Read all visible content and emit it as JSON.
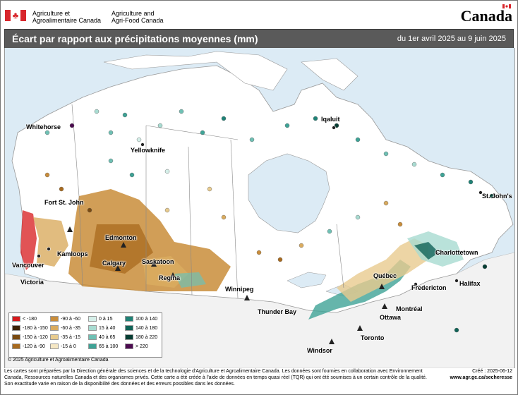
{
  "header": {
    "org_fr_line1": "Agriculture et",
    "org_fr_line2": "Agroalimentaire Canada",
    "org_en_line1": "Agriculture and",
    "org_en_line2": "Agri-Food Canada",
    "wordmark": "Canada",
    "flag_icon": "canada-flag-icon"
  },
  "title": {
    "main": "Écart par rapport aux précipitations moyennes (mm)",
    "date_range": "du 1er avril 2025 au 9 juin 2025"
  },
  "cities": [
    {
      "id": "whitehorse",
      "name": "Whitehorse"
    },
    {
      "id": "yellowknife",
      "name": "Yellowknife"
    },
    {
      "id": "iqaluit",
      "name": "Iqaluit"
    },
    {
      "id": "fort-st-john",
      "name": "Fort St. John"
    },
    {
      "id": "edmonton",
      "name": "Edmonton"
    },
    {
      "id": "kamloops",
      "name": "Kamloops"
    },
    {
      "id": "calgary",
      "name": "Calgary"
    },
    {
      "id": "saskatoon",
      "name": "Saskatoon"
    },
    {
      "id": "vancouver",
      "name": "Vancouver"
    },
    {
      "id": "regina",
      "name": "Regina"
    },
    {
      "id": "victoria",
      "name": "Victoria"
    },
    {
      "id": "winnipeg",
      "name": "Winnipeg"
    },
    {
      "id": "thunder-bay",
      "name": "Thunder Bay"
    },
    {
      "id": "st-johns",
      "name": "St. John's"
    },
    {
      "id": "charlottetown",
      "name": "Charlottetown"
    },
    {
      "id": "quebec",
      "name": "Québec"
    },
    {
      "id": "fredericton",
      "name": "Fredericton"
    },
    {
      "id": "halifax",
      "name": "Halifax"
    },
    {
      "id": "montreal",
      "name": "Montréal"
    },
    {
      "id": "ottawa",
      "name": "Ottawa"
    },
    {
      "id": "toronto",
      "name": "Toronto"
    },
    {
      "id": "windsor",
      "name": "Windsor"
    }
  ],
  "copyright": "© 2025 Agriculture et Agroalimentaire Canada",
  "legend": [
    {
      "label": "< -180",
      "color": "#d7191c"
    },
    {
      "label": "-180 à -150",
      "color": "#3d2204"
    },
    {
      "label": "-150 à -120",
      "color": "#7a4a10"
    },
    {
      "label": "-120 à -90",
      "color": "#a86a1e"
    },
    {
      "label": "-90 à -60",
      "color": "#c98d3a"
    },
    {
      "label": "-60 à -35",
      "color": "#d9ab5f"
    },
    {
      "label": "-35 à -15",
      "color": "#e8cb8e"
    },
    {
      "label": "-15 à 0",
      "color": "#f5e7c4"
    },
    {
      "label": "0 à 15",
      "color": "#d5efe9"
    },
    {
      "label": "15 à 40",
      "color": "#a8dbd1"
    },
    {
      "label": "40 à 65",
      "color": "#6fc0b4"
    },
    {
      "label": "65 à 100",
      "color": "#3ea396"
    },
    {
      "label": "100 à 140",
      "color": "#1f8276"
    },
    {
      "label": "140 à 180",
      "color": "#106357"
    },
    {
      "label": "180 à 220",
      "color": "#063d33"
    },
    {
      "label": "> 220",
      "color": "#4b0a4f"
    }
  ],
  "footer": {
    "text": "Les cartes sont préparées par la Direction générale des sciences et de la technologie d'Agriculture et Agroalimentaire Canada. Les données sont fournies en collaboration avec Environnement Canada, Ressources naturelles Canada et des organismes privés. Cette carte a été créée à l'aide de données en temps quasi réel (TQR) qui ont été soumises à un certain contrôle de la qualité. Son exactitude varie en raison de la disponibilité des données et des erreurs possibles dans les données.",
    "created": "Créé : 2025-06-12",
    "url": "www.agr.gc.ca/secheresse"
  }
}
